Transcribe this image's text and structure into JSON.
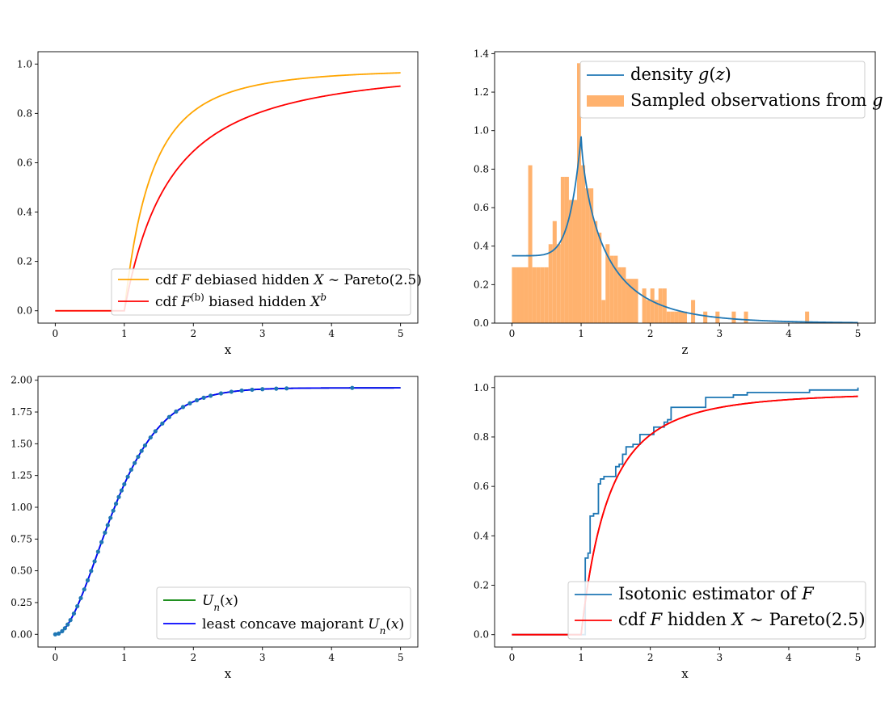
{
  "chart_data": [
    {
      "type": "line",
      "panel": "top-left",
      "xlabel": "x",
      "ylabel": "",
      "xlim": [
        -0.25,
        5.25
      ],
      "ylim": [
        -0.05,
        1.05
      ],
      "xticks": [
        "0",
        "1",
        "2",
        "3",
        "4",
        "5"
      ],
      "yticks": [
        "0.0",
        "0.2",
        "0.4",
        "0.6",
        "0.8",
        "1.0"
      ],
      "legend_position": "lower-right",
      "series": [
        {
          "name": "cdf F debiased hidden X ~ Pareto(2.5)",
          "color": "#ffa500",
          "model": "pareto",
          "alpha": 2.5,
          "scale": 0.982
        },
        {
          "name": "cdf F^(b) biased hidden X^b",
          "color": "#ff0000",
          "model": "pareto",
          "alpha": 1.5,
          "scale": 1.0
        }
      ],
      "legend": [
        {
          "pre": "cdf ",
          "math": "F",
          "post": " debiased hidden ",
          "math2": "X",
          "post2": " ∼ Pareto(2.5)"
        },
        {
          "pre": "cdf ",
          "math": "F",
          "sup": "(b)",
          "post": " biased hidden ",
          "math2": "X",
          "sup2": "b",
          "post2": ""
        }
      ]
    },
    {
      "type": "bar",
      "panel": "top-right",
      "xlabel": "z",
      "ylabel": "",
      "xlim": [
        -0.25,
        5.25
      ],
      "ylim": [
        0,
        1.41
      ],
      "xticks": [
        "0",
        "1",
        "2",
        "3",
        "4",
        "5"
      ],
      "yticks": [
        "0.0",
        "0.2",
        "0.4",
        "0.6",
        "0.8",
        "1.0",
        "1.2",
        "1.4"
      ],
      "legend_position": "upper-right",
      "histogram": {
        "name": "Sampled observations from g",
        "color": "#ffb26e",
        "bin_width": 0.0588,
        "bins": [
          [
            0.0,
            0.29
          ],
          [
            0.0588,
            0.29
          ],
          [
            0.1176,
            0.29
          ],
          [
            0.1765,
            0.29
          ],
          [
            0.2353,
            0.82
          ],
          [
            0.2941,
            0.29
          ],
          [
            0.3529,
            0.29
          ],
          [
            0.4118,
            0.29
          ],
          [
            0.4706,
            0.29
          ],
          [
            0.5294,
            0.41
          ],
          [
            0.5882,
            0.53
          ],
          [
            0.6471,
            0.41
          ],
          [
            0.7059,
            0.76
          ],
          [
            0.7647,
            0.76
          ],
          [
            0.8235,
            0.64
          ],
          [
            0.8824,
            0.64
          ],
          [
            0.9412,
            1.35
          ],
          [
            1.0,
            0.82
          ],
          [
            1.0588,
            0.7
          ],
          [
            1.1176,
            0.7
          ],
          [
            1.1765,
            0.53
          ],
          [
            1.2353,
            0.47
          ],
          [
            1.2941,
            0.12
          ],
          [
            1.3529,
            0.41
          ],
          [
            1.4118,
            0.35
          ],
          [
            1.4706,
            0.35
          ],
          [
            1.5294,
            0.29
          ],
          [
            1.5882,
            0.29
          ],
          [
            1.6471,
            0.23
          ],
          [
            1.7059,
            0.23
          ],
          [
            1.7647,
            0.23
          ],
          [
            1.8824,
            0.18
          ],
          [
            1.9412,
            0.12
          ],
          [
            2.0,
            0.18
          ],
          [
            2.0588,
            0.12
          ],
          [
            2.1176,
            0.18
          ],
          [
            2.1765,
            0.18
          ],
          [
            2.2353,
            0.06
          ],
          [
            2.2941,
            0.06
          ],
          [
            2.3529,
            0.06
          ],
          [
            2.4118,
            0.06
          ],
          [
            2.4706,
            0.06
          ],
          [
            2.5882,
            0.12
          ],
          [
            2.7647,
            0.06
          ],
          [
            2.9412,
            0.06
          ],
          [
            3.1765,
            0.06
          ],
          [
            3.3529,
            0.06
          ],
          [
            4.2353,
            0.06
          ]
        ]
      },
      "series": [
        {
          "name": "density g(z)",
          "color": "#1f77b4",
          "model": "peaked-density",
          "peak_x": 1.0,
          "peak_y": 0.97
        }
      ],
      "legend": [
        {
          "pre": "density ",
          "math": "g",
          "post": "(",
          "math2": "z",
          "post2": ")"
        },
        {
          "pre": "Sampled observations from ",
          "math": "g",
          "post": "",
          "math2": "",
          "post2": ""
        }
      ]
    },
    {
      "type": "line",
      "panel": "bottom-left",
      "xlabel": "x",
      "ylabel": "",
      "xlim": [
        -0.25,
        5.25
      ],
      "ylim": [
        -0.1,
        2.03
      ],
      "xticks": [
        "0",
        "1",
        "2",
        "3",
        "4",
        "5"
      ],
      "yticks": [
        "0.00",
        "0.25",
        "0.50",
        "0.75",
        "1.00",
        "1.25",
        "1.50",
        "1.75",
        "2.00"
      ],
      "legend_position": "lower-right",
      "series": [
        {
          "name": "U_n(x)",
          "color": "#008000",
          "model": "majorant"
        },
        {
          "name": "least concave majorant U_n(x)",
          "color": "#0000ff",
          "model": "majorant"
        }
      ],
      "points": {
        "color": "#1f77b4",
        "x": [
          0.0,
          0.05,
          0.1,
          0.14,
          0.18,
          0.22,
          0.27,
          0.32,
          0.37,
          0.42,
          0.47,
          0.52,
          0.57,
          0.62,
          0.67,
          0.72,
          0.76,
          0.8,
          0.84,
          0.88,
          0.92,
          0.96,
          1.0,
          1.05,
          1.1,
          1.15,
          1.2,
          1.25,
          1.3,
          1.38,
          1.45,
          1.55,
          1.65,
          1.75,
          1.85,
          1.95,
          2.05,
          2.15,
          2.25,
          2.4,
          2.55,
          2.7,
          2.85,
          3.0,
          3.2,
          3.35,
          4.3
        ]
      },
      "legend": [
        {
          "pre": "",
          "math": "U",
          "sub": "n",
          "post": "(",
          "math2": "x",
          "post2": ")"
        },
        {
          "pre": "least concave majorant ",
          "math": "U",
          "sub": "n",
          "post": "(",
          "math2": "x",
          "post2": ")"
        }
      ]
    },
    {
      "type": "line",
      "panel": "bottom-right",
      "xlabel": "x",
      "ylabel": "",
      "xlim": [
        -0.25,
        5.25
      ],
      "ylim": [
        -0.05,
        1.045
      ],
      "xticks": [
        "0",
        "1",
        "2",
        "3",
        "4",
        "5"
      ],
      "yticks": [
        "0.0",
        "0.2",
        "0.4",
        "0.6",
        "0.8",
        "1.0"
      ],
      "legend_position": "lower-right",
      "steps": {
        "name": "Isotonic estimator of F",
        "color": "#1f77b4",
        "x": [
          0.0,
          1.06,
          1.1,
          1.13,
          1.18,
          1.25,
          1.28,
          1.33,
          1.4,
          1.5,
          1.55,
          1.6,
          1.65,
          1.75,
          1.85,
          2.05,
          2.2,
          2.25,
          2.3,
          2.5,
          2.8,
          3.2,
          3.4,
          4.3,
          5.0
        ],
        "y": [
          0.0,
          0.31,
          0.33,
          0.48,
          0.49,
          0.61,
          0.63,
          0.64,
          0.64,
          0.68,
          0.69,
          0.73,
          0.76,
          0.77,
          0.81,
          0.84,
          0.86,
          0.87,
          0.92,
          0.92,
          0.96,
          0.97,
          0.98,
          0.99,
          1.0
        ]
      },
      "series": [
        {
          "name": "cdf F hidden X ~ Pareto(2.5)",
          "color": "#ff0000",
          "model": "pareto",
          "alpha": 2.5,
          "scale": 0.982
        }
      ],
      "legend": [
        {
          "pre": "Isotonic estimator of ",
          "math": "F",
          "post": "",
          "math2": "",
          "post2": ""
        },
        {
          "pre": "cdf ",
          "math": "F",
          "post": " hidden ",
          "math2": "X",
          "post2": " ∼ Pareto(2.5)"
        }
      ]
    }
  ]
}
